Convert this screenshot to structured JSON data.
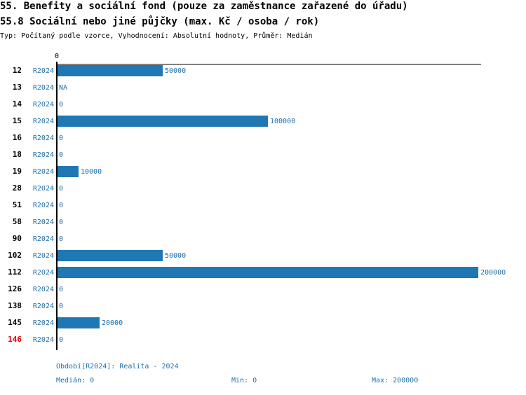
{
  "chart_data": {
    "type": "hbar",
    "title": "55. Benefity a sociální fond (pouze za zaměstnance zařazené do úřadu)",
    "subtitle": "55.8 Sociální nebo jiné půjčky (max. Kč / osoba / rok)",
    "note": "Typ: Počítaný podle vzorce, Vyhodnocení: Absolutní hodnoty, Průměr: Medián",
    "categories": [
      "12",
      "13",
      "14",
      "15",
      "16",
      "18",
      "19",
      "28",
      "51",
      "58",
      "90",
      "102",
      "112",
      "126",
      "138",
      "145",
      "146"
    ],
    "series": [
      {
        "name": "R2024",
        "color": "#1f77b4",
        "values": [
          50000,
          null,
          0,
          100000,
          0,
          0,
          10000,
          0,
          0,
          0,
          0,
          50000,
          200000,
          0,
          0,
          20000,
          0
        ],
        "value_labels": [
          "50000",
          "NA",
          "0",
          "100000",
          "0",
          "0",
          "10000",
          "0",
          "0",
          "0",
          "0",
          "50000",
          "200000",
          "0",
          "0",
          "20000",
          "0"
        ]
      }
    ],
    "highlight_index": 16,
    "highlight_color": "#e00000",
    "xlim": [
      0,
      200000
    ],
    "xticks": [
      0
    ],
    "footer": {
      "period": "Období[R2024]: Realita - 2024",
      "median": "Medián: 0",
      "min": "Min: 0",
      "max": "Max: 200000"
    }
  }
}
